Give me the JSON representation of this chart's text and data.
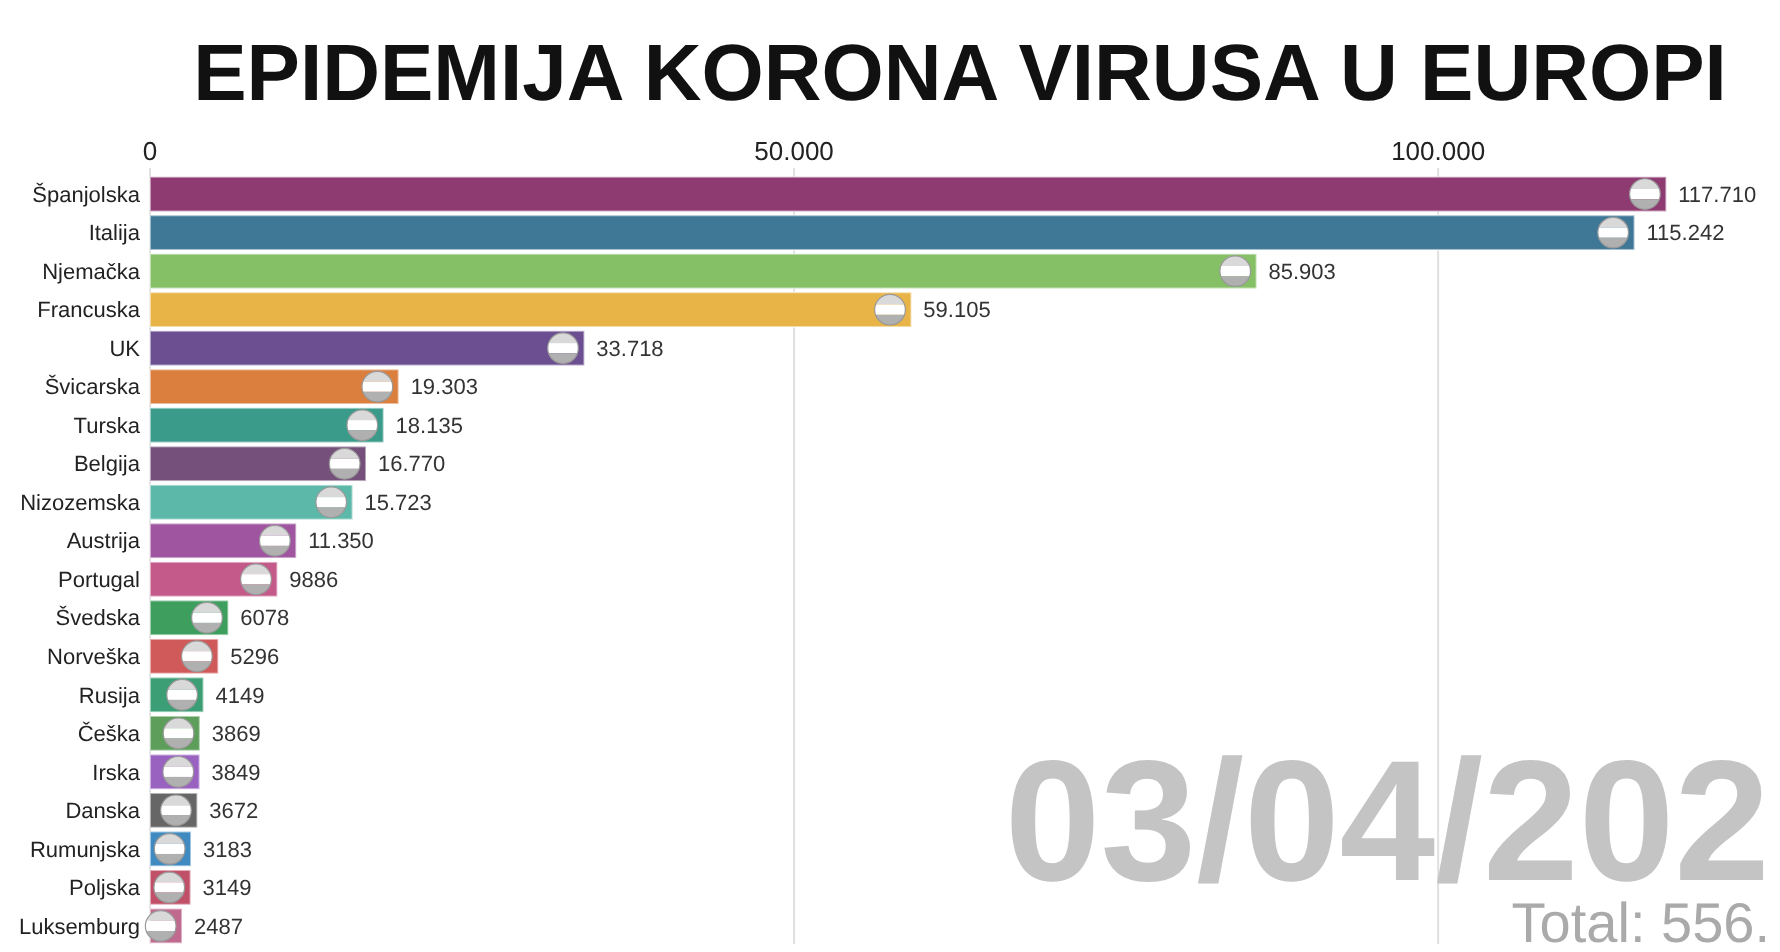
{
  "chart_data": {
    "type": "bar",
    "orientation": "horizontal",
    "title": "EPIDEMIJA KORONA VIRUSA U EUROPI",
    "categories": [
      "Španjolska",
      "Italija",
      "Njemačka",
      "Francuska",
      "UK",
      "Švicarska",
      "Turska",
      "Belgija",
      "Nizozemska",
      "Austrija",
      "Portugal",
      "Švedska",
      "Norveška",
      "Rusija",
      "Češka",
      "Irska",
      "Danska",
      "Rumunjska",
      "Poljska",
      "Luksemburg"
    ],
    "values": [
      117710,
      115242,
      85903,
      59105,
      33718,
      19303,
      18135,
      16770,
      15723,
      11350,
      9886,
      6078,
      5296,
      4149,
      3869,
      3849,
      3672,
      3183,
      3149,
      2487
    ],
    "value_labels": [
      "117.710",
      "115.242",
      "85.903",
      "59.105",
      "33.718",
      "19.303",
      "18.135",
      "16.770",
      "15.723",
      "11.350",
      "9886",
      "6078",
      "5296",
      "4149",
      "3869",
      "3849",
      "3672",
      "3183",
      "3149",
      "2487"
    ],
    "colors": [
      "#8e3b72",
      "#3f7897",
      "#85c066",
      "#e8b347",
      "#6b4f91",
      "#db7f3f",
      "#3a9b8a",
      "#74507a",
      "#5cb8a8",
      "#a055a0",
      "#c45a8a",
      "#3e9e5e",
      "#d05a5a",
      "#3b9e74",
      "#5c9e5a",
      "#9a62c0",
      "#666666",
      "#3f8ac0",
      "#c05068",
      "#c06a90"
    ],
    "xlim": [
      0,
      118000
    ],
    "xticks": [
      {
        "value": 0,
        "label": "0"
      },
      {
        "value": 50000,
        "label": "50.000"
      },
      {
        "value": 100000,
        "label": "100.000"
      }
    ],
    "grid": "x",
    "annotations": [
      "03/04/202",
      "Total: 556."
    ]
  }
}
